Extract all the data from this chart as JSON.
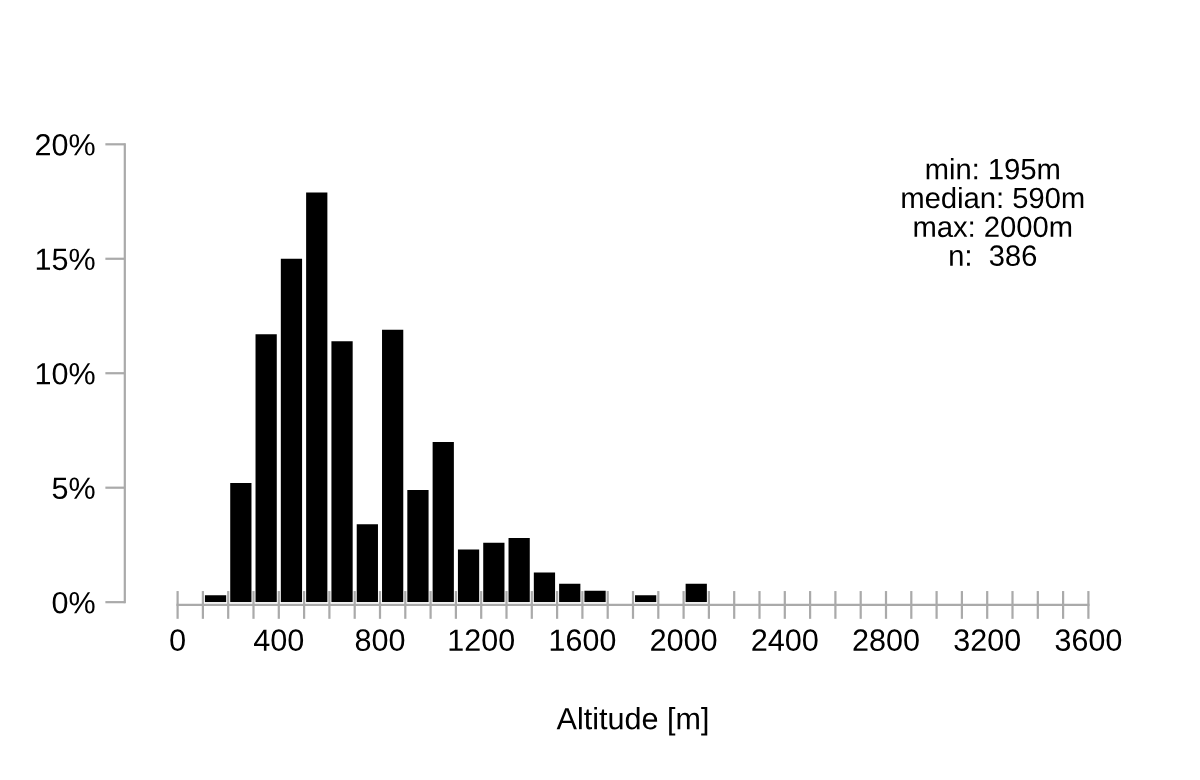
{
  "chart_data": {
    "type": "histogram",
    "xlabel": "Altitude [m]",
    "bins": [
      0,
      100,
      200,
      300,
      400,
      500,
      600,
      700,
      800,
      900,
      1000,
      1100,
      1200,
      1300,
      1400,
      1500,
      1600,
      1700,
      1800,
      1900,
      2000,
      2100,
      2200,
      2300,
      2400,
      2500,
      2600,
      2700,
      2800,
      2900,
      3000,
      3100,
      3200,
      3300,
      3400,
      3500,
      3600
    ],
    "values": [
      0,
      0.3,
      5.2,
      11.7,
      15.0,
      17.9,
      11.4,
      3.4,
      11.9,
      4.9,
      7.0,
      2.3,
      2.6,
      2.8,
      1.3,
      0.8,
      0.5,
      0,
      0.3,
      0,
      0.8,
      0,
      0,
      0,
      0,
      0,
      0,
      0,
      0,
      0,
      0,
      0,
      0,
      0,
      0,
      0
    ],
    "color": "#000000",
    "xlim": [
      0,
      3600
    ],
    "xticks": [
      0,
      {
        "value": 100,
        "label": null
      },
      {
        "value": 200,
        "label": null
      },
      {
        "value": 300,
        "label": null
      },
      400,
      {
        "value": 500,
        "label": null
      },
      {
        "value": 600,
        "label": null
      },
      {
        "value": 700,
        "label": null
      },
      800,
      {
        "value": 900,
        "label": null
      },
      {
        "value": 1000,
        "label": null
      },
      {
        "value": 1100,
        "label": null
      },
      1200,
      {
        "value": 1300,
        "label": null
      },
      {
        "value": 1400,
        "label": null
      },
      {
        "value": 1500,
        "label": null
      },
      1600,
      {
        "value": 1700,
        "label": null
      },
      {
        "value": 1800,
        "label": null
      },
      {
        "value": 1900,
        "label": null
      },
      2000,
      {
        "value": 2100,
        "label": null
      },
      {
        "value": 2200,
        "label": null
      },
      {
        "value": 2300,
        "label": null
      },
      2400,
      {
        "value": 2500,
        "label": null
      },
      {
        "value": 2600,
        "label": null
      },
      {
        "value": 2700,
        "label": null
      },
      2800,
      {
        "value": 2900,
        "label": null
      },
      {
        "value": 3000,
        "label": null
      },
      {
        "value": 3100,
        "label": null
      },
      3200,
      {
        "value": 3300,
        "label": null
      },
      {
        "value": 3400,
        "label": null
      },
      {
        "value": 3500,
        "label": null
      },
      3600
    ],
    "ylim": [
      0,
      20
    ],
    "yticks": [
      {
        "value": 0,
        "label": "0%"
      },
      {
        "value": 5,
        "label": "5%"
      },
      {
        "value": 10,
        "label": "10%"
      },
      {
        "value": 15,
        "label": "15%"
      },
      {
        "value": 20,
        "label": "20%"
      }
    ],
    "grid": false,
    "legend": false,
    "annotations": [
      "min: 195m",
      "median: 590m",
      "max: 2000m",
      "n:  386"
    ]
  }
}
